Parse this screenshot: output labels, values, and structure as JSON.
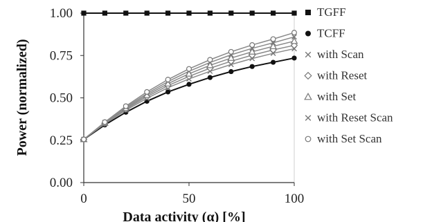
{
  "chart_data": {
    "type": "line",
    "title": "",
    "xlabel": "Data activity (α) [%]",
    "ylabel": "Power (normalized)",
    "xlim": [
      0,
      100
    ],
    "ylim": [
      0.0,
      1.0
    ],
    "x_ticks": [
      "0",
      "50",
      "100"
    ],
    "y_ticks": [
      "0.00",
      "0.25",
      "0.50",
      "0.75",
      "1.00"
    ],
    "grid": false,
    "legend_position": "right",
    "x": [
      0,
      10,
      20,
      30,
      40,
      50,
      60,
      70,
      80,
      90,
      100
    ],
    "series": [
      {
        "name": "TGFF",
        "marker": "square-filled",
        "color": "#111111",
        "values": [
          1.0,
          1.0,
          1.0,
          1.0,
          1.0,
          1.0,
          1.0,
          1.0,
          1.0,
          1.0,
          1.0
        ]
      },
      {
        "name": "TCFF",
        "marker": "circle-filled",
        "color": "#111111",
        "values": [
          0.255,
          0.34,
          0.415,
          0.48,
          0.535,
          0.58,
          0.62,
          0.655,
          0.685,
          0.71,
          0.735
        ]
      },
      {
        "name": "with Scan",
        "marker": "x",
        "color": "#777777",
        "values": [
          0.255,
          0.347,
          0.427,
          0.497,
          0.56,
          0.612,
          0.657,
          0.697,
          0.732,
          0.763,
          0.79
        ]
      },
      {
        "name": "with Reset",
        "marker": "diamond-open",
        "color": "#777777",
        "values": [
          0.255,
          0.35,
          0.433,
          0.507,
          0.572,
          0.627,
          0.675,
          0.716,
          0.752,
          0.783,
          0.81
        ]
      },
      {
        "name": "with Set",
        "marker": "triangle-open",
        "color": "#777777",
        "values": [
          0.255,
          0.352,
          0.439,
          0.516,
          0.584,
          0.642,
          0.692,
          0.735,
          0.772,
          0.804,
          0.835
        ]
      },
      {
        "name": "with Reset Scan",
        "marker": "x",
        "color": "#777777",
        "values": [
          0.255,
          0.355,
          0.445,
          0.525,
          0.596,
          0.657,
          0.709,
          0.754,
          0.792,
          0.825,
          0.86
        ]
      },
      {
        "name": "with Set Scan",
        "marker": "circle-open",
        "color": "#777777",
        "values": [
          0.255,
          0.357,
          0.451,
          0.535,
          0.608,
          0.671,
          0.725,
          0.772,
          0.812,
          0.847,
          0.885
        ]
      }
    ]
  }
}
